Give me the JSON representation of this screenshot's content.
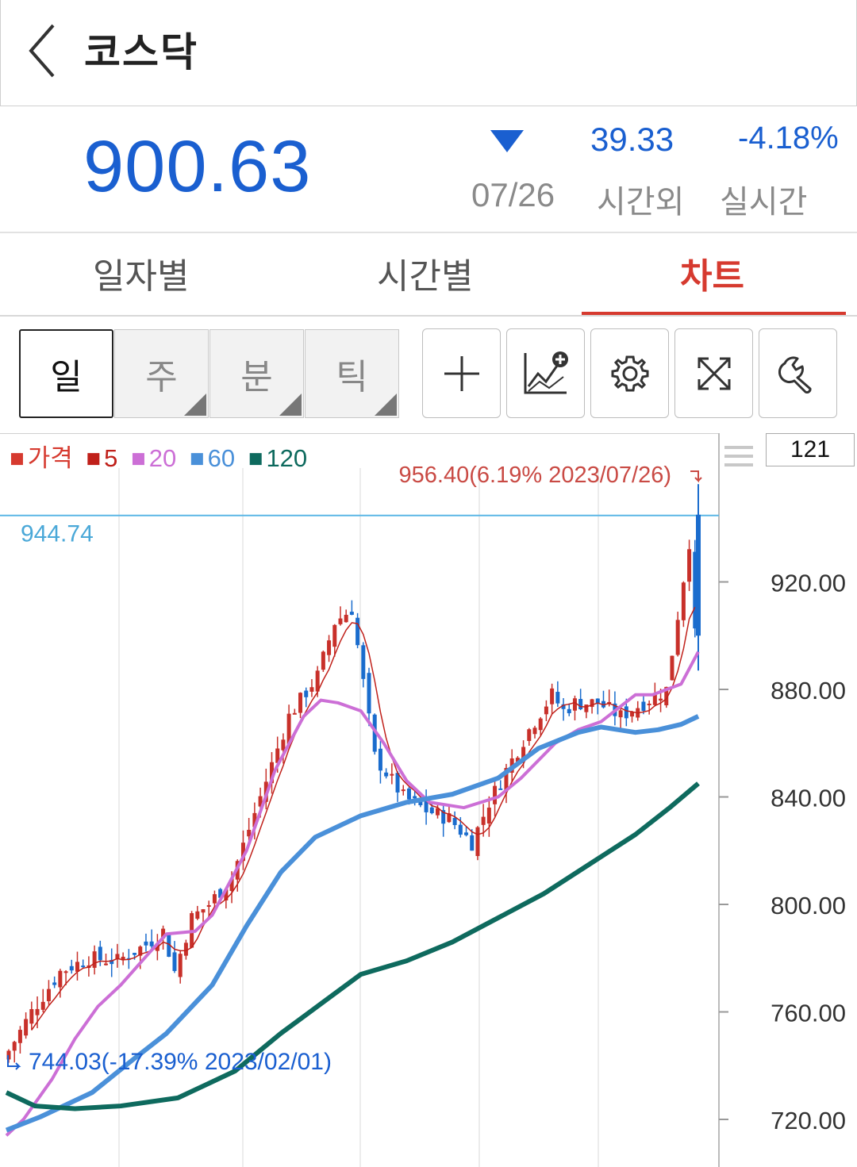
{
  "header": {
    "title": "코스닥",
    "back_icon": "chevron-left-icon"
  },
  "quote": {
    "price": "900.63",
    "direction_icon": "down-triangle-icon",
    "change": "39.33",
    "change_rate": "-4.18%",
    "date": "07/26",
    "after_hours_label": "시간외",
    "realtime_label": "실시간",
    "color": "#1a5fd0"
  },
  "tabs": [
    {
      "label": "일자별",
      "active": false
    },
    {
      "label": "시간별",
      "active": false
    },
    {
      "label": "차트",
      "active": true
    }
  ],
  "periods": [
    {
      "label": "일",
      "active": true
    },
    {
      "label": "주",
      "active": false
    },
    {
      "label": "분",
      "active": false
    },
    {
      "label": "틱",
      "active": false
    }
  ],
  "tools": [
    "crosshair-icon",
    "add-indicator-icon",
    "gear-icon",
    "expand-icon",
    "wrench-icon"
  ],
  "chart": {
    "candle_count": "121",
    "legend": [
      {
        "label": "가격",
        "color": "#d63a2f"
      },
      {
        "label": "5",
        "color": "#c0201a"
      },
      {
        "label": "20",
        "color": "#cc6fd6"
      },
      {
        "label": "60",
        "color": "#4a90d9"
      },
      {
        "label": "120",
        "color": "#0e6a5e"
      }
    ],
    "high_annotation": "956.40(6.19% 2023/07/26)",
    "low_annotation": "744.03(-17.39% 2023/02/01)",
    "current_line_label": "944.74",
    "y_labels": [
      "920.00",
      "880.00",
      "840.00",
      "800.00",
      "760.00",
      "720.00"
    ],
    "up_color": "#c8302a",
    "down_color": "#1a6ccd"
  },
  "chart_data": {
    "type": "line",
    "x_range": [
      "2023/02/01",
      "2023/07/26"
    ],
    "ylim": [
      715,
      955
    ],
    "ticks": [
      920,
      880,
      840,
      800,
      760,
      720
    ],
    "series": [
      {
        "name": "20",
        "values": [
          [
            0,
            714
          ],
          [
            3,
            720
          ],
          [
            8,
            735
          ],
          [
            12,
            750
          ],
          [
            16,
            762
          ],
          [
            20,
            770
          ],
          [
            25,
            782
          ],
          [
            28,
            789
          ],
          [
            33,
            790
          ],
          [
            36,
            796
          ],
          [
            42,
            820
          ],
          [
            47,
            850
          ],
          [
            52,
            870
          ],
          [
            55,
            876
          ],
          [
            58,
            875
          ],
          [
            62,
            872
          ],
          [
            66,
            860
          ],
          [
            70,
            846
          ],
          [
            74,
            838
          ],
          [
            80,
            836
          ],
          [
            86,
            840
          ],
          [
            90,
            847
          ],
          [
            96,
            860
          ],
          [
            100,
            865
          ],
          [
            104,
            868
          ],
          [
            110,
            878
          ],
          [
            113,
            878
          ],
          [
            118,
            882
          ],
          [
            121,
            894
          ]
        ]
      },
      {
        "name": "60",
        "values": [
          [
            0,
            716
          ],
          [
            6,
            721
          ],
          [
            15,
            730
          ],
          [
            22,
            742
          ],
          [
            28,
            752
          ],
          [
            36,
            770
          ],
          [
            42,
            792
          ],
          [
            48,
            812
          ],
          [
            54,
            825
          ],
          [
            62,
            833
          ],
          [
            70,
            838
          ],
          [
            78,
            841
          ],
          [
            86,
            847
          ],
          [
            93,
            858
          ],
          [
            100,
            864
          ],
          [
            104,
            866
          ],
          [
            110,
            864
          ],
          [
            114,
            865
          ],
          [
            118,
            867
          ],
          [
            121,
            870
          ]
        ]
      },
      {
        "name": "120",
        "values": [
          [
            0,
            730
          ],
          [
            5,
            725
          ],
          [
            12,
            724
          ],
          [
            20,
            725
          ],
          [
            30,
            728
          ],
          [
            40,
            738
          ],
          [
            48,
            752
          ],
          [
            55,
            763
          ],
          [
            62,
            774
          ],
          [
            70,
            779
          ],
          [
            78,
            786
          ],
          [
            86,
            795
          ],
          [
            94,
            804
          ],
          [
            102,
            815
          ],
          [
            110,
            826
          ],
          [
            116,
            836
          ],
          [
            121,
            845
          ]
        ]
      }
    ]
  }
}
